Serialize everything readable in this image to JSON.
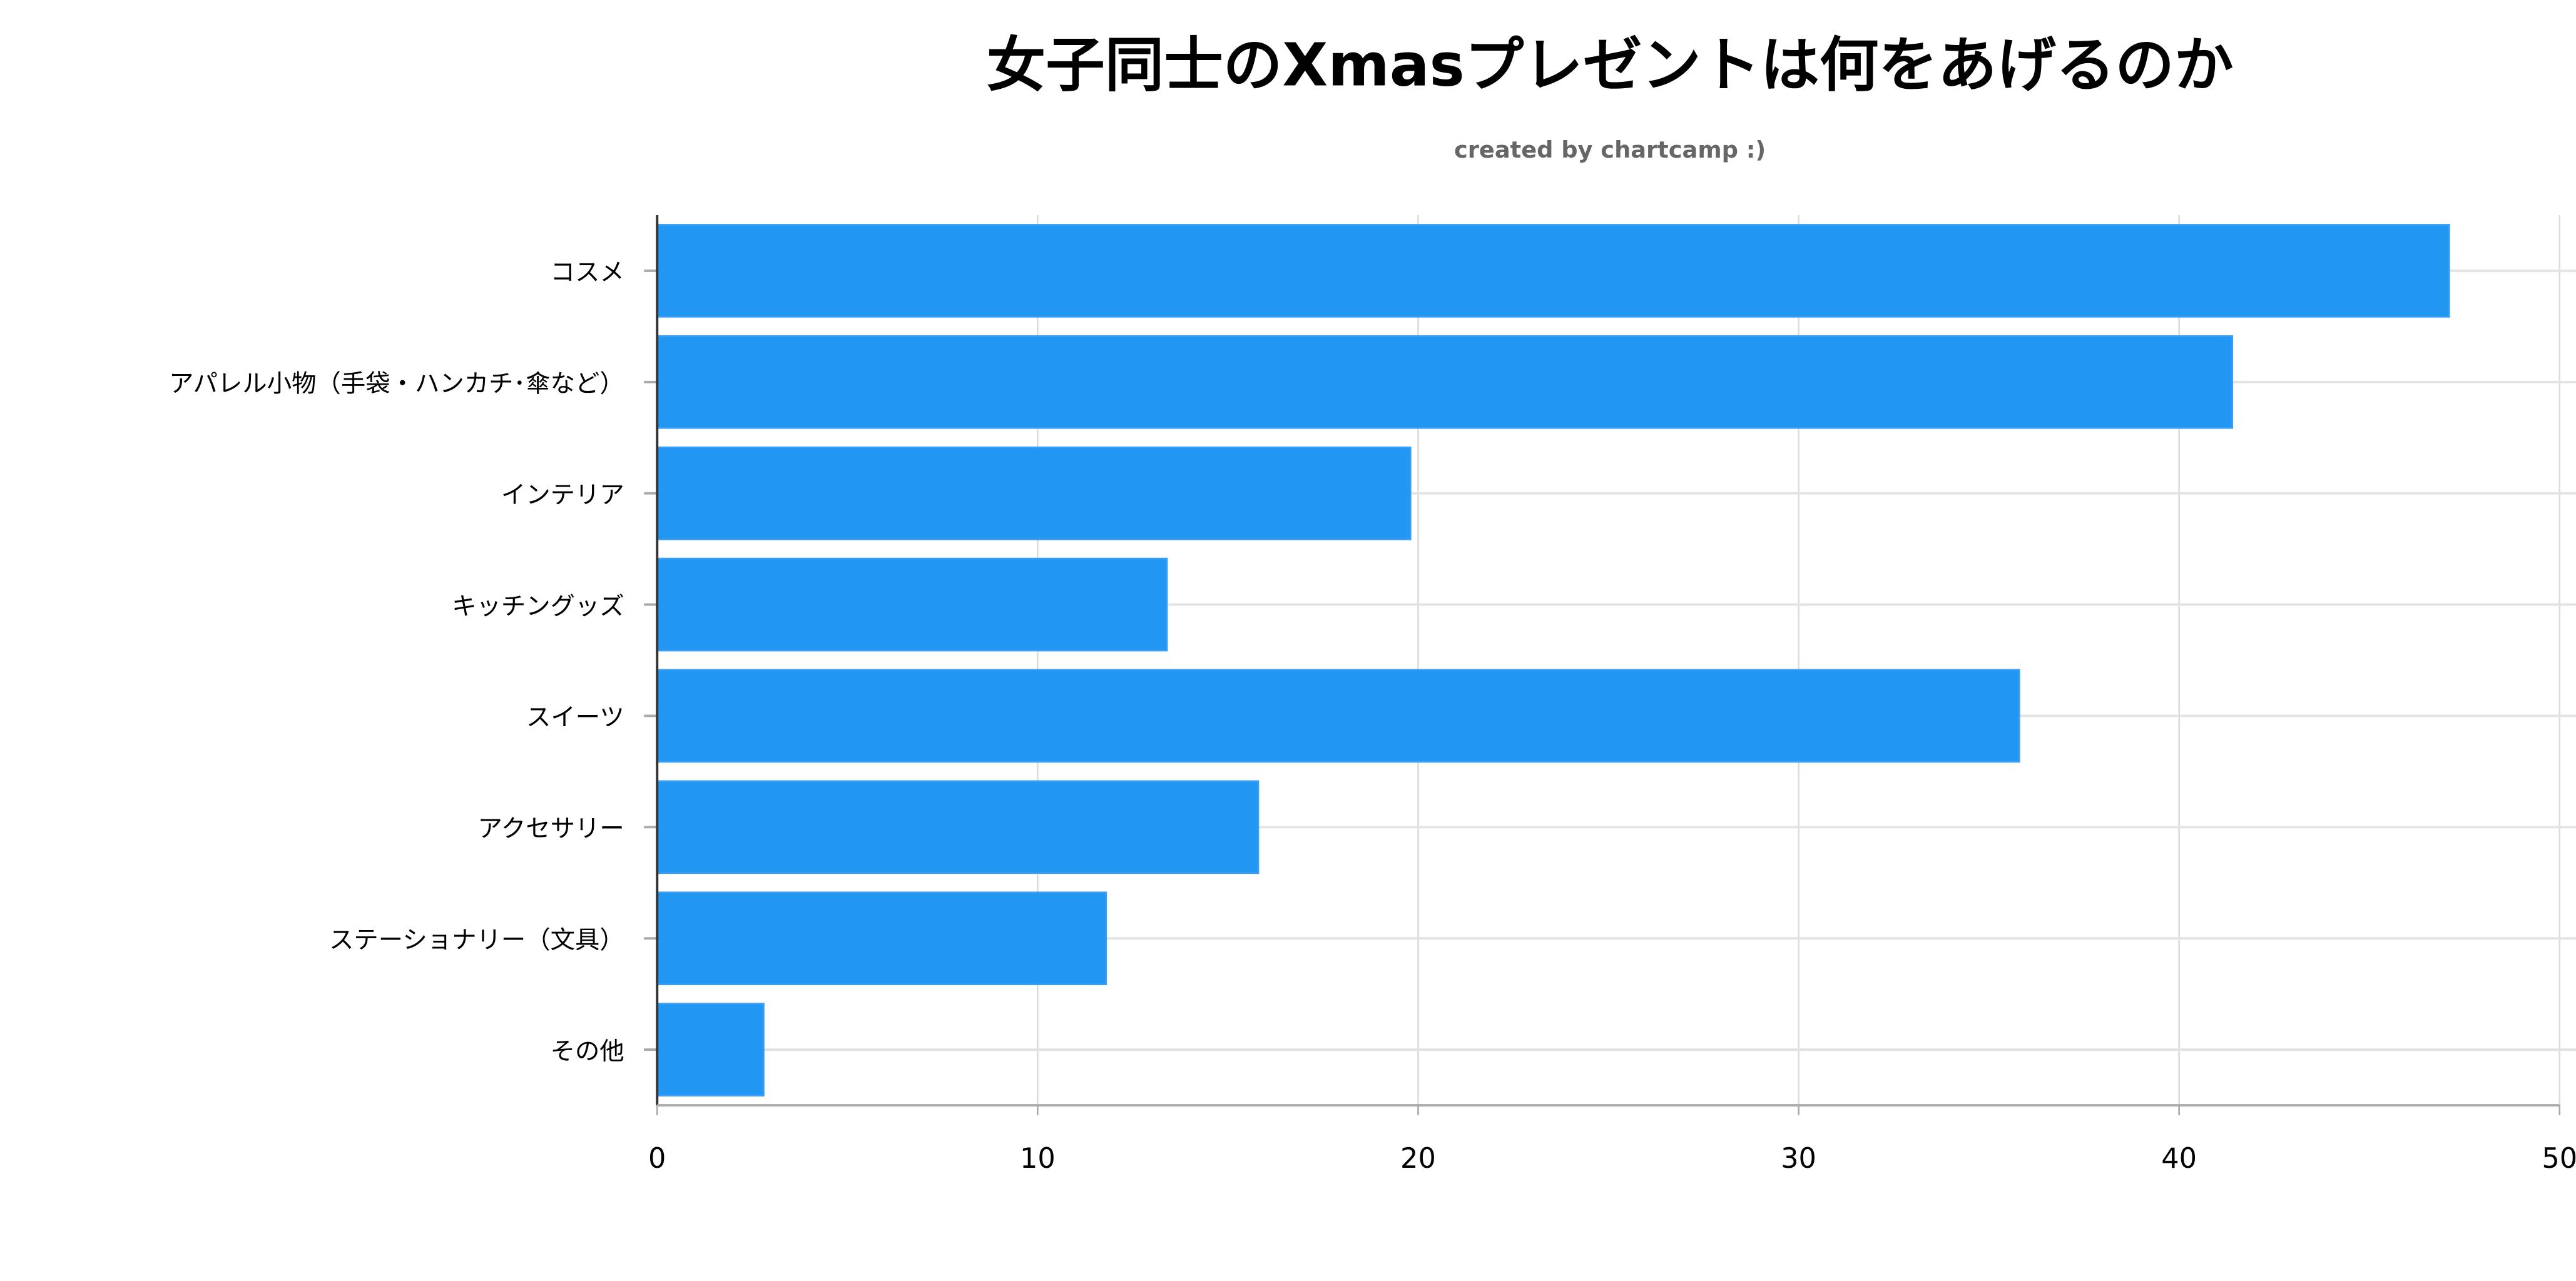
{
  "chart_data": {
    "type": "bar",
    "orientation": "horizontal",
    "title": "女子同士のXmasプレゼントは何をあげるのか",
    "subtitle": "created by chartcamp :)",
    "xlabel": "",
    "ylabel": "",
    "categories": [
      "コスメ",
      "アパレル小物（手袋・ハンカチ･傘など）",
      "インテリア",
      "キッチングッズ",
      "スイーツ",
      "アクセサリー",
      "ステーショナリー（文具）",
      "その他"
    ],
    "values": [
      47.1,
      41.4,
      19.8,
      13.4,
      35.8,
      15.8,
      11.8,
      2.8
    ],
    "xlim": [
      0,
      50
    ],
    "xticks": [
      "0",
      "10",
      "20",
      "30",
      "40",
      "50"
    ],
    "grid": true,
    "legend": "none",
    "colors": {
      "bar": "#2196f3",
      "bar_edge": "#3a9ff5",
      "grid": "#e3e3e3",
      "axis": "#aaaaaa"
    }
  }
}
